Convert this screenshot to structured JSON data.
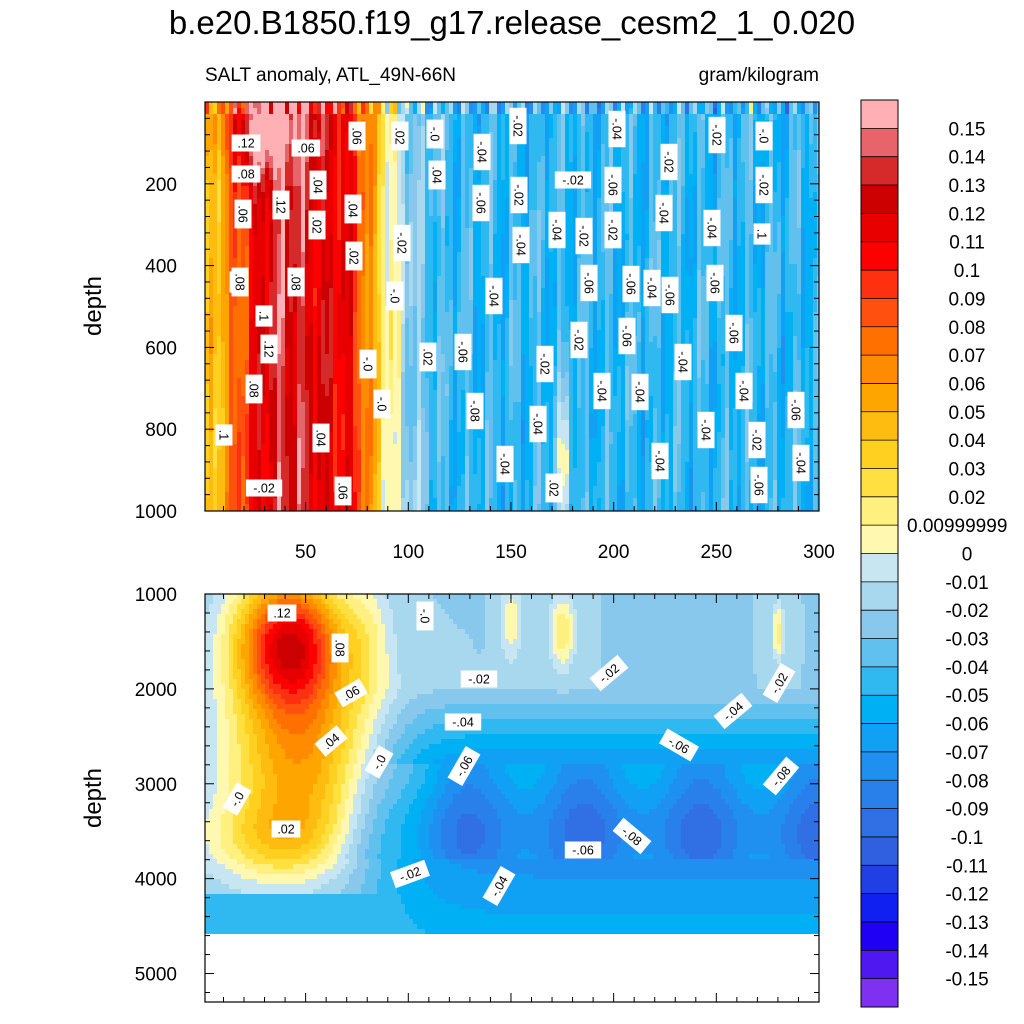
{
  "chart_data": {
    "type": "heatmap",
    "title": "b.e20.B1850.f19_g17.release_cesm2_1_0.020",
    "subtitle_left": "SALT anomaly, ATL_49N-66N",
    "subtitle_right": "gram/kilogram",
    "xlabel": "",
    "ylabel": "depth",
    "x_range": [
      1,
      300
    ],
    "x_ticks": [
      "50",
      "100",
      "150",
      "200",
      "250",
      "300"
    ],
    "panels": [
      {
        "name": "upper",
        "y_range": [
          0,
          1000
        ],
        "y_ticks": [
          "200",
          "400",
          "600",
          "800",
          "1000"
        ],
        "y_ticks_top": false,
        "contour_labels": [
          ".12",
          ".08",
          ".06",
          ".12",
          ".1",
          ".1",
          ".12",
          ".06",
          ".04",
          ".08",
          ".04",
          ".02",
          ".06",
          ".04",
          ".02",
          ".02",
          ".04",
          ".02",
          "-.0",
          "-.02",
          "-.04",
          "-.06",
          "-.02",
          "-.04",
          "-.02",
          "-.04",
          "-.06",
          "-.08",
          "-.02",
          "-.04",
          "-.06",
          "-.02",
          "-.04",
          "-.06",
          "-.04",
          "-.02",
          "-.04",
          "-.02",
          "-.02",
          "-.04",
          "-.06",
          "-.04",
          "-.02",
          "-.04",
          "-.06",
          "-.04",
          "-.06",
          "-.04",
          "-.02",
          "-.04",
          "-.06",
          "-.02",
          "-.02",
          "-.06",
          "-.06",
          ".02",
          ".06",
          "-.0",
          "-.0",
          "-.0",
          "-.04",
          "-.0",
          "-.04",
          ".1",
          ".08",
          ".08",
          ".1",
          "-.02",
          "-.06",
          "-.04",
          "-.04",
          "-.04"
        ]
      },
      {
        "name": "lower",
        "y_range": [
          1000,
          5300
        ],
        "y_ticks": [
          "1000",
          "2000",
          "3000",
          "4000",
          "5000"
        ],
        "data_bottom": 4600,
        "contour_labels": [
          ".12",
          ".08",
          ".06",
          ".04",
          "-.0",
          "-.0",
          ".02",
          "-.0",
          "-.02",
          "-.04",
          "-.06",
          "-.02",
          "-.06",
          "-.04",
          "-.02",
          "-.08",
          "-.08",
          "-.06",
          "-.02",
          "-.04"
        ]
      }
    ],
    "colorbar": {
      "labels": [
        "0.15",
        "0.14",
        "0.13",
        "0.12",
        "0.11",
        "0.1",
        "0.09",
        "0.08",
        "0.07",
        "0.06",
        "0.05",
        "0.04",
        "0.03",
        "0.02",
        "0.00999999",
        "0",
        "-0.01",
        "-0.02",
        "-0.03",
        "-0.04",
        "-0.05",
        "-0.06",
        "-0.07",
        "-0.08",
        "-0.09",
        "-0.1",
        "-0.11",
        "-0.12",
        "-0.13",
        "-0.14",
        "-0.15"
      ],
      "colors": [
        "#ffb0b4",
        "#e6646a",
        "#d62a2a",
        "#cc0000",
        "#e80000",
        "#ff0000",
        "#ff3010",
        "#ff5010",
        "#ff7000",
        "#ff8c00",
        "#ffa500",
        "#ffbc10",
        "#ffd020",
        "#ffe040",
        "#fff080",
        "#fff8b0",
        "#c8e6f2",
        "#a8d8ee",
        "#88c8ec",
        "#60c0ee",
        "#30b8f0",
        "#00b0f4",
        "#10a0f4",
        "#2090f0",
        "#2a80ea",
        "#3070e4",
        "#3060e0",
        "#2040e6",
        "#1020f0",
        "#2000f4",
        "#5018f0",
        "#8030f0"
      ]
    }
  }
}
